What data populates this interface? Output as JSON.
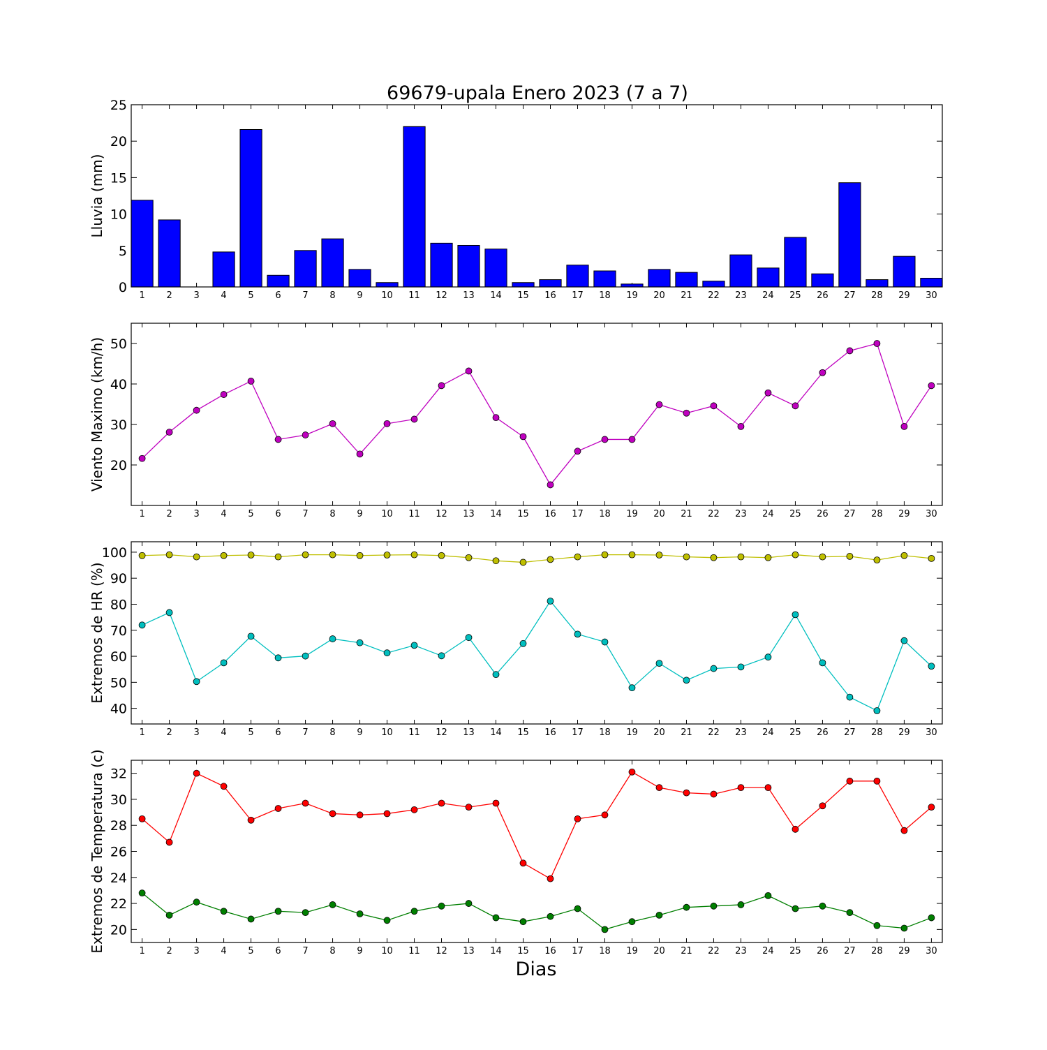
{
  "title": "69679-upala Enero 2023  (7 a 7)",
  "xlabel": "Dias",
  "chart_data": [
    {
      "type": "bar",
      "ylabel": "Lluvia (mm)",
      "ylim": [
        0,
        25
      ],
      "yticks": [
        0,
        5,
        10,
        15,
        20,
        25
      ],
      "categories": [
        1,
        2,
        3,
        4,
        5,
        6,
        7,
        8,
        9,
        10,
        11,
        12,
        13,
        14,
        15,
        16,
        17,
        18,
        19,
        20,
        21,
        22,
        23,
        24,
        25,
        26,
        27,
        28,
        29,
        30
      ],
      "series": [
        {
          "color": "#0000ff",
          "values": [
            11.9,
            9.2,
            0.0,
            4.8,
            21.6,
            1.6,
            5.0,
            6.6,
            2.4,
            0.6,
            22.0,
            6.0,
            5.7,
            5.2,
            0.6,
            1.0,
            3.0,
            2.2,
            0.4,
            2.4,
            2.0,
            0.8,
            4.4,
            2.6,
            6.8,
            1.8,
            14.3,
            1.0,
            4.2,
            1.2
          ]
        }
      ],
      "grid": false
    },
    {
      "type": "line",
      "ylabel": "Viento Maximo (km/h)",
      "ylim": [
        10,
        55
      ],
      "yticks": [
        20,
        30,
        40,
        50
      ],
      "x": [
        1,
        2,
        3,
        4,
        5,
        6,
        7,
        8,
        9,
        10,
        11,
        12,
        13,
        14,
        15,
        16,
        17,
        18,
        19,
        20,
        21,
        22,
        23,
        24,
        25,
        26,
        27,
        28,
        29,
        30
      ],
      "series": [
        {
          "color": "#bf00bf",
          "values": [
            21.6,
            28.1,
            33.5,
            37.4,
            40.7,
            26.3,
            27.4,
            30.2,
            22.7,
            30.2,
            31.3,
            39.6,
            43.2,
            31.7,
            27.0,
            15.1,
            23.4,
            26.3,
            26.3,
            34.9,
            32.8,
            34.6,
            29.5,
            37.8,
            34.6,
            42.8,
            48.2,
            50.0,
            29.5,
            39.6
          ]
        }
      ],
      "grid": false
    },
    {
      "type": "line",
      "ylabel": "Extremos de HR (%)",
      "ylim": [
        34,
        104
      ],
      "yticks": [
        40,
        50,
        60,
        70,
        80,
        90,
        100
      ],
      "x": [
        1,
        2,
        3,
        4,
        5,
        6,
        7,
        8,
        9,
        10,
        11,
        12,
        13,
        14,
        15,
        16,
        17,
        18,
        19,
        20,
        21,
        22,
        23,
        24,
        25,
        26,
        27,
        28,
        29,
        30
      ],
      "series": [
        {
          "color": "#bfbf00",
          "values": [
            98.7,
            99.0,
            98.2,
            98.7,
            98.9,
            98.2,
            99.0,
            99.0,
            98.7,
            98.9,
            99.0,
            98.7,
            97.9,
            96.7,
            96.1,
            97.2,
            98.2,
            99.0,
            99.0,
            98.9,
            98.2,
            97.9,
            98.2,
            97.9,
            99.0,
            98.2,
            98.4,
            97.0,
            98.7,
            97.6
          ]
        },
        {
          "color": "#00bfbf",
          "values": [
            72.0,
            76.8,
            50.3,
            57.5,
            67.7,
            59.4,
            60.1,
            66.7,
            65.2,
            61.3,
            64.2,
            60.2,
            67.2,
            53.0,
            64.9,
            81.2,
            68.5,
            65.5,
            47.9,
            57.3,
            50.8,
            55.3,
            55.9,
            59.7,
            76.0,
            57.5,
            44.3,
            39.1,
            66.0,
            56.2
          ]
        }
      ],
      "grid": false
    },
    {
      "type": "line",
      "ylabel": "Extremos de Temperatura (c)",
      "ylim": [
        19,
        33
      ],
      "yticks": [
        20,
        22,
        24,
        26,
        28,
        30,
        32
      ],
      "x": [
        1,
        2,
        3,
        4,
        5,
        6,
        7,
        8,
        9,
        10,
        11,
        12,
        13,
        14,
        15,
        16,
        17,
        18,
        19,
        20,
        21,
        22,
        23,
        24,
        25,
        26,
        27,
        28,
        29,
        30
      ],
      "series": [
        {
          "color": "#ff0000",
          "values": [
            28.5,
            26.7,
            32.0,
            31.0,
            28.4,
            29.3,
            29.7,
            28.9,
            28.8,
            28.9,
            29.2,
            29.7,
            29.4,
            29.7,
            25.1,
            23.9,
            28.5,
            28.8,
            32.1,
            30.9,
            30.5,
            30.4,
            30.9,
            30.9,
            27.7,
            29.5,
            31.4,
            31.4,
            27.6,
            29.4
          ]
        },
        {
          "color": "#007f00",
          "values": [
            22.8,
            21.1,
            22.1,
            21.4,
            20.8,
            21.4,
            21.3,
            21.9,
            21.2,
            20.7,
            21.4,
            21.8,
            22.0,
            20.9,
            20.6,
            21.0,
            21.6,
            20.0,
            20.6,
            21.1,
            21.7,
            21.8,
            21.9,
            22.6,
            21.6,
            21.8,
            21.3,
            20.3,
            20.1,
            20.9
          ]
        }
      ],
      "grid": false
    }
  ]
}
